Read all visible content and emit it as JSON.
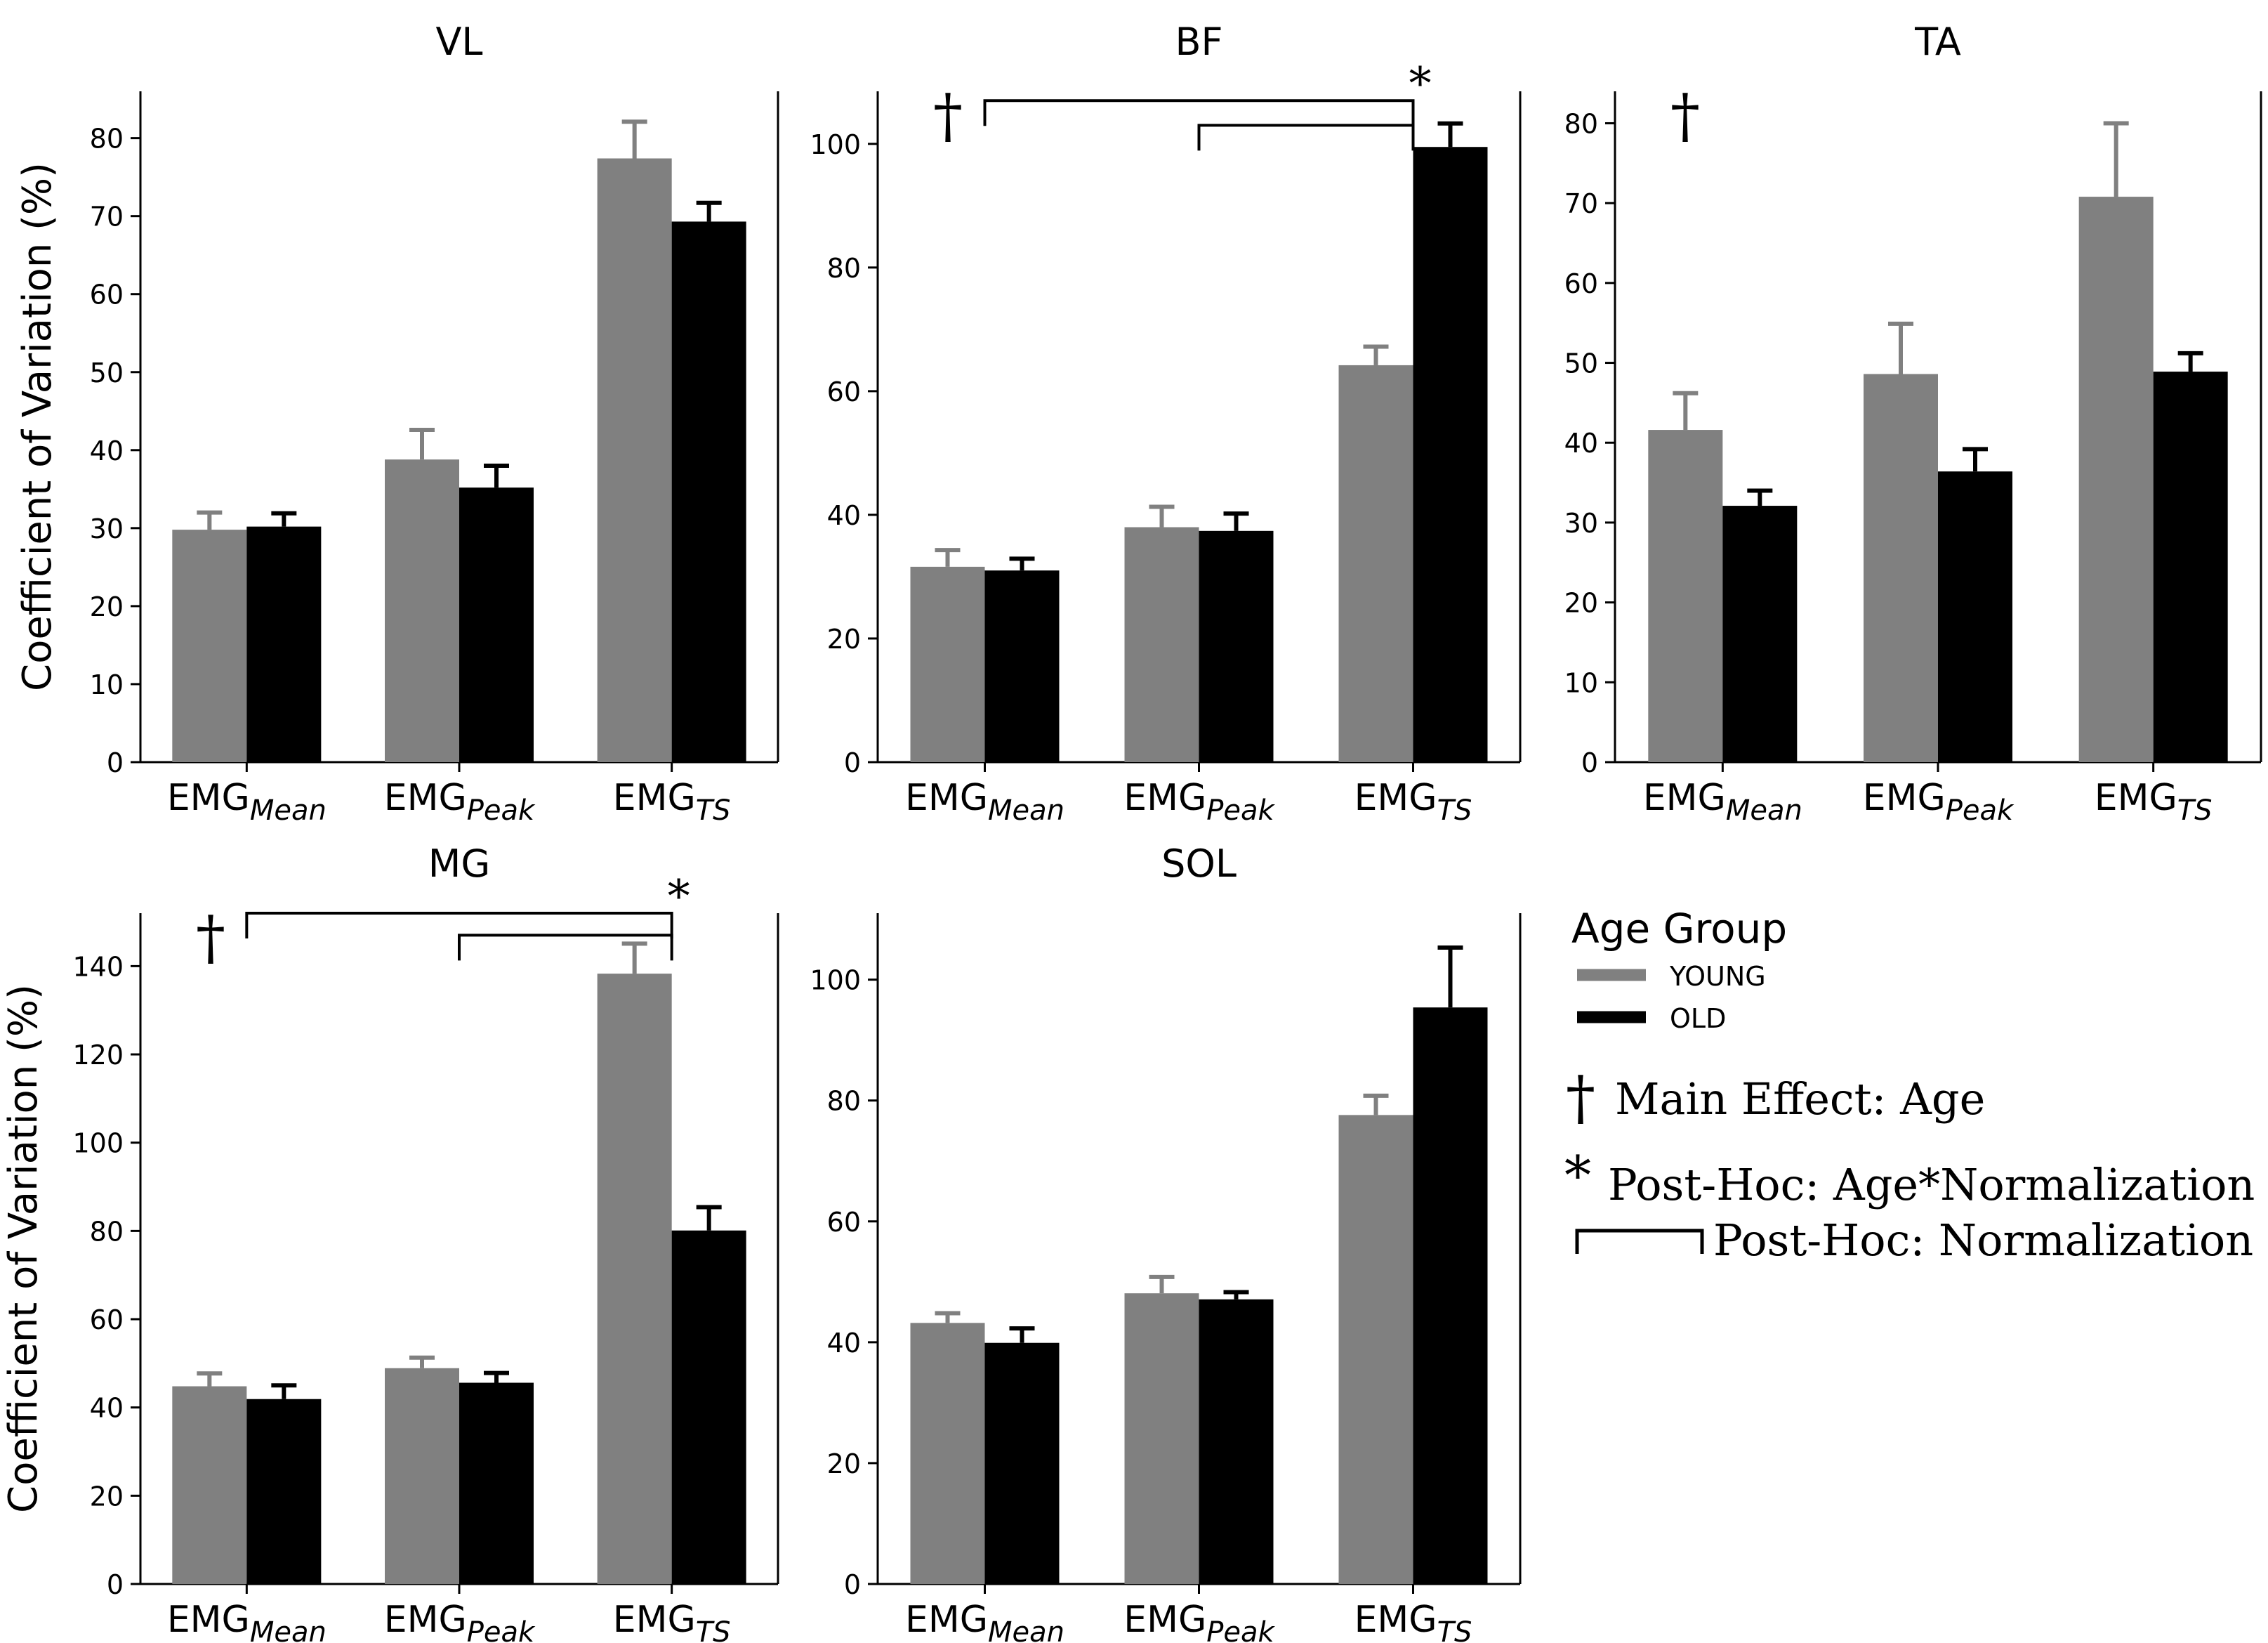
{
  "colors": {
    "young": "#808080",
    "old": "#000000",
    "axis": "#000000"
  },
  "legend": {
    "title": "Age Group",
    "young_label": "YOUNG",
    "old_label": "OLD",
    "dagger_symbol": "†",
    "dagger_text": "Main Effect: Age",
    "star_symbol": "*",
    "star_text": "Post-Hoc: Age*Normalization",
    "bracket_text": "Post-Hoc: Normalization"
  },
  "chart_data": [
    {
      "type": "bar",
      "title": "VL",
      "ylabel": "Coefficient of Variation (%)",
      "ylim": [
        0,
        86
      ],
      "yticks": [
        0,
        10,
        20,
        30,
        40,
        50,
        60,
        70,
        80
      ],
      "categories": [
        {
          "base": "EMG",
          "sub": "Mean"
        },
        {
          "base": "EMG",
          "sub": "Peak"
        },
        {
          "base": "EMG",
          "sub": "TS"
        }
      ],
      "series": [
        {
          "name": "YOUNG",
          "values": [
            29.8,
            38.8,
            77.4
          ],
          "errors": [
            2.2,
            3.8,
            4.7
          ]
        },
        {
          "name": "OLD",
          "values": [
            30.2,
            35.2,
            69.3
          ],
          "errors": [
            1.7,
            2.8,
            2.4
          ]
        }
      ],
      "dagger": false,
      "star_category": null,
      "brackets": []
    },
    {
      "type": "bar",
      "title": "BF",
      "ylabel": "",
      "ylim": [
        0,
        108.5
      ],
      "yticks": [
        0,
        20,
        40,
        60,
        80,
        100
      ],
      "categories": [
        {
          "base": "EMG",
          "sub": "Mean"
        },
        {
          "base": "EMG",
          "sub": "Peak"
        },
        {
          "base": "EMG",
          "sub": "TS"
        }
      ],
      "series": [
        {
          "name": "YOUNG",
          "values": [
            31.6,
            38.0,
            64.2
          ],
          "errors": [
            2.7,
            3.3,
            3.0
          ]
        },
        {
          "name": "OLD",
          "values": [
            31.0,
            37.4,
            99.5
          ],
          "errors": [
            1.9,
            2.8,
            3.8
          ]
        }
      ],
      "dagger": true,
      "star_category": 2,
      "brackets": [
        {
          "from": 0,
          "to": 2,
          "level": 107
        },
        {
          "from": 1,
          "to": 2,
          "level": 103
        }
      ]
    },
    {
      "type": "bar",
      "title": "TA",
      "ylabel": "",
      "ylim": [
        0,
        84
      ],
      "yticks": [
        0,
        10,
        20,
        30,
        40,
        50,
        60,
        70,
        80
      ],
      "categories": [
        {
          "base": "EMG",
          "sub": "Mean"
        },
        {
          "base": "EMG",
          "sub": "Peak"
        },
        {
          "base": "EMG",
          "sub": "TS"
        }
      ],
      "series": [
        {
          "name": "YOUNG",
          "values": [
            41.6,
            48.6,
            70.8
          ],
          "errors": [
            4.6,
            6.3,
            9.2
          ]
        },
        {
          "name": "OLD",
          "values": [
            32.1,
            36.4,
            48.9
          ],
          "errors": [
            1.9,
            2.8,
            2.3
          ]
        }
      ],
      "dagger": true,
      "star_category": null,
      "brackets": []
    },
    {
      "type": "bar",
      "title": "MG",
      "ylabel": "Coefficient of Variation (%)",
      "ylim": [
        0,
        152
      ],
      "yticks": [
        0,
        20,
        40,
        60,
        80,
        100,
        120,
        140
      ],
      "categories": [
        {
          "base": "EMG",
          "sub": "Mean"
        },
        {
          "base": "EMG",
          "sub": "Peak"
        },
        {
          "base": "EMG",
          "sub": "TS"
        }
      ],
      "series": [
        {
          "name": "YOUNG",
          "values": [
            44.8,
            48.9,
            138.3
          ],
          "errors": [
            2.9,
            2.4,
            6.8
          ]
        },
        {
          "name": "OLD",
          "values": [
            41.9,
            45.6,
            80.1
          ],
          "errors": [
            3.1,
            2.2,
            5.3
          ]
        }
      ],
      "dagger": true,
      "star_category": 2,
      "brackets": [
        {
          "from": 0,
          "to": 2,
          "level": 152
        },
        {
          "from": 1,
          "to": 2,
          "level": 147
        }
      ]
    },
    {
      "type": "bar",
      "title": "SOL",
      "ylabel": "",
      "ylim": [
        0,
        111
      ],
      "yticks": [
        0,
        20,
        40,
        60,
        80,
        100
      ],
      "categories": [
        {
          "base": "EMG",
          "sub": "Mean"
        },
        {
          "base": "EMG",
          "sub": "Peak"
        },
        {
          "base": "EMG",
          "sub": "TS"
        }
      ],
      "series": [
        {
          "name": "YOUNG",
          "values": [
            43.2,
            48.1,
            77.6
          ],
          "errors": [
            1.6,
            2.7,
            3.2
          ]
        },
        {
          "name": "OLD",
          "values": [
            39.9,
            47.1,
            95.4
          ],
          "errors": [
            2.4,
            1.2,
            9.9
          ]
        }
      ],
      "dagger": false,
      "star_category": null,
      "brackets": []
    }
  ]
}
